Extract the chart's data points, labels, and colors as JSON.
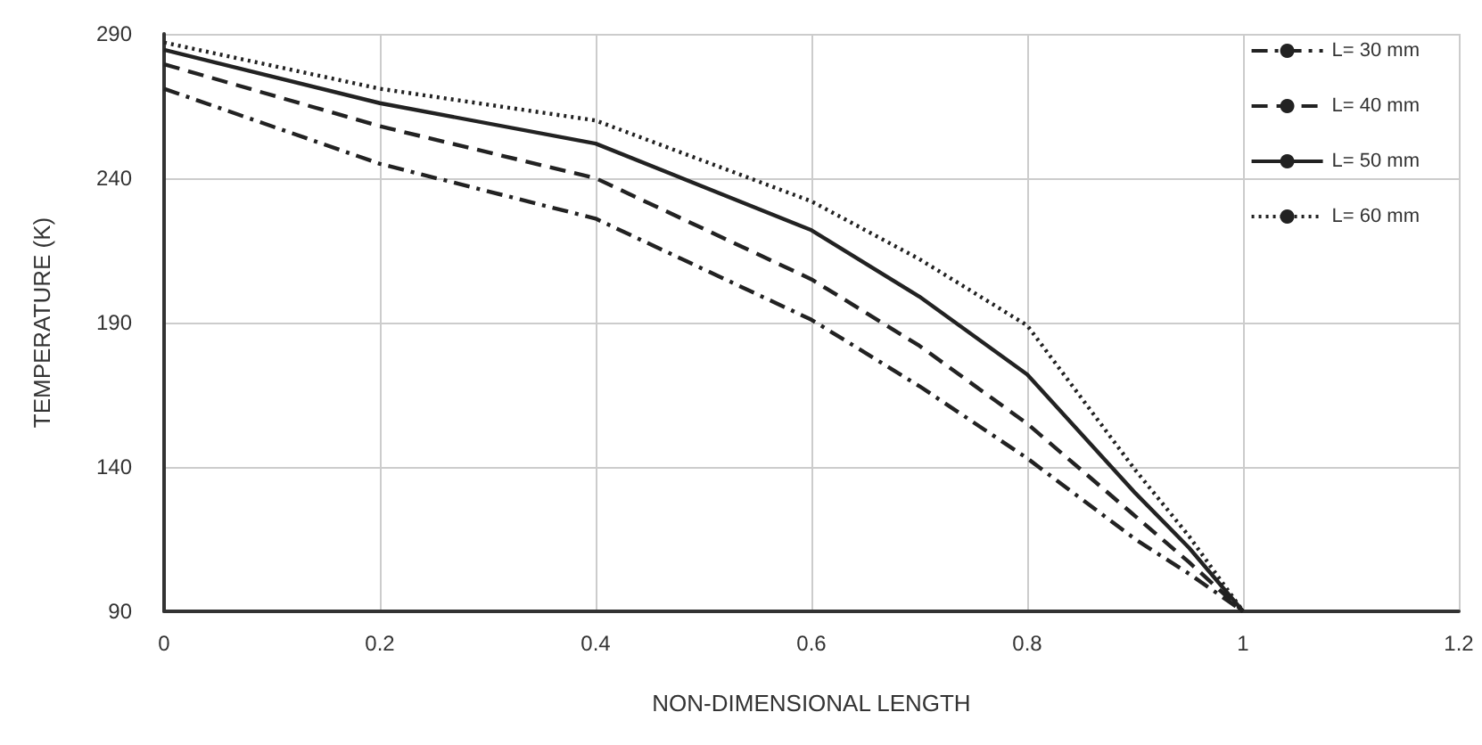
{
  "chart_data": {
    "type": "line",
    "xlabel": "NON-DIMENSIONAL LENGTH",
    "ylabel": "TEMPERATURE (K)",
    "x": [
      0,
      0.2,
      0.4,
      0.6,
      0.7,
      0.8,
      0.9,
      0.95,
      1
    ],
    "series": [
      {
        "name": "L= 30 mm",
        "color": "#222222",
        "line_style": "dashdot",
        "values": [
          271,
          245,
          226,
          191,
          168,
          143,
          115,
          103,
          90
        ]
      },
      {
        "name": "L= 40 mm",
        "color": "#222222",
        "line_style": "dashed",
        "values": [
          279.5,
          258,
          240,
          205,
          182,
          155,
          123,
          107,
          90
        ]
      },
      {
        "name": "L= 50 mm",
        "color": "#222222",
        "line_style": "solid",
        "values": [
          284.5,
          266,
          252,
          222,
          199,
          172,
          131,
          112,
          90
        ]
      },
      {
        "name": "L= 60 mm",
        "color": "#222222",
        "line_style": "dotted",
        "values": [
          287,
          271,
          260,
          232,
          212,
          189,
          139,
          116,
          90
        ]
      }
    ],
    "xlim": [
      0,
      1.2
    ],
    "xticks": [
      0,
      0.2,
      0.4,
      0.6,
      0.8,
      1,
      1.2
    ],
    "ylim": [
      90,
      290
    ],
    "yticks": [
      90,
      140,
      190,
      240,
      290
    ],
    "grid": true,
    "legend": "top right",
    "marker": "none"
  }
}
